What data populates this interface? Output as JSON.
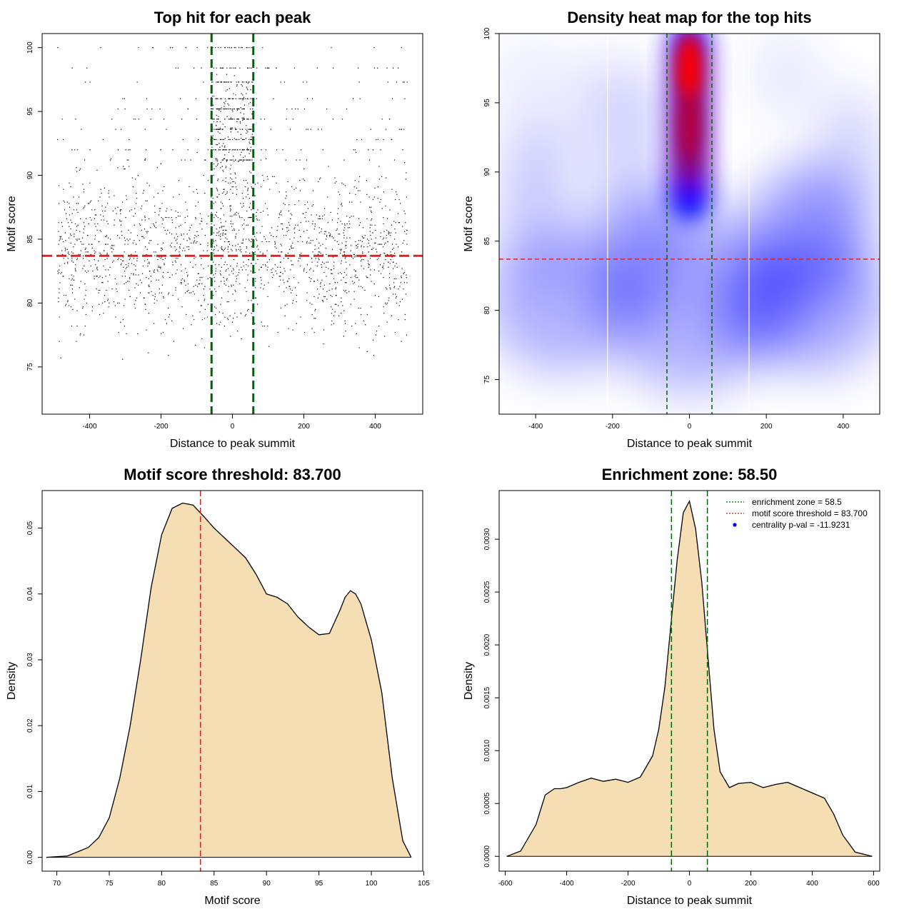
{
  "chart_data": [
    {
      "id": "scatter",
      "type": "scatter",
      "title": "Top hit for each peak",
      "xlabel": "Distance to peak summit",
      "ylabel": "Motif score",
      "xlim": [
        -533,
        533
      ],
      "ylim": [
        71.3,
        101.1
      ],
      "xticks": [
        -400,
        -200,
        0,
        200,
        400
      ],
      "yticks": [
        75,
        80,
        85,
        90,
        95,
        100
      ],
      "threshold": 83.7,
      "zone": [
        -58.5,
        58.5
      ],
      "colors": {
        "points": "#000000",
        "threshold": "#dd2222",
        "zone": "#006400"
      },
      "points_summary": {
        "n": 2500,
        "x_range": [
          -500,
          500
        ],
        "score_range": [
          72.5,
          100
        ],
        "note": "dense column near x=0 at high scores"
      }
    },
    {
      "id": "heatmap",
      "type": "heatmap",
      "title": "Density heat map for the top hits",
      "xlabel": "Distance to peak summit",
      "ylabel": "Motif score",
      "xlim": [
        -495,
        495
      ],
      "ylim": [
        72.5,
        100
      ],
      "xticks": [
        -400,
        -200,
        0,
        200,
        400
      ],
      "yticks": [
        75,
        80,
        85,
        90,
        95,
        100
      ],
      "threshold": 83.7,
      "zone": [
        -58.5,
        58.5
      ],
      "colors": {
        "low": "#ffffff",
        "mid": "#0000ff",
        "high": "#ff0000",
        "threshold": "#dd2222",
        "zone": "#006400"
      }
    },
    {
      "id": "score_density",
      "type": "area",
      "title": "Motif score threshold: 83.700",
      "xlabel": "Motif score",
      "ylabel": "Density",
      "xlim": [
        68.6,
        104.9
      ],
      "ylim": [
        -0.0021,
        0.0557
      ],
      "xticks": [
        70,
        75,
        80,
        85,
        90,
        95,
        100,
        105
      ],
      "yticks": [
        0.0,
        0.01,
        0.02,
        0.03,
        0.04,
        0.05
      ],
      "ytick_labels": [
        "0.00",
        "0.01",
        "0.02",
        "0.03",
        "0.04",
        "0.05"
      ],
      "threshold": 83.7,
      "x": [
        69,
        71,
        73,
        74,
        75,
        76,
        77,
        78,
        79,
        80,
        81,
        82,
        83,
        84,
        85,
        86,
        87,
        88,
        89,
        90,
        91,
        92,
        93,
        94,
        95,
        96,
        97,
        97.5,
        98,
        98.5,
        99,
        100,
        101,
        102,
        103,
        103.8
      ],
      "y": [
        0.0,
        0.0002,
        0.0015,
        0.003,
        0.006,
        0.012,
        0.02,
        0.03,
        0.041,
        0.049,
        0.053,
        0.0538,
        0.0535,
        0.0518,
        0.05,
        0.0485,
        0.047,
        0.0455,
        0.043,
        0.04,
        0.0395,
        0.0385,
        0.0365,
        0.035,
        0.0338,
        0.034,
        0.0375,
        0.0395,
        0.0405,
        0.04,
        0.0385,
        0.033,
        0.025,
        0.012,
        0.0025,
        0.0
      ],
      "colors": {
        "fill": "#f5deb3",
        "line": "#000000",
        "threshold": "#cc2222"
      }
    },
    {
      "id": "distance_density",
      "type": "area",
      "title": "Enrichment zone: 58.50",
      "xlabel": "Distance to peak summit",
      "ylabel": "Density",
      "xlim": [
        -620,
        620
      ],
      "ylim": [
        -0.00014,
        0.00346
      ],
      "xticks": [
        -600,
        -400,
        -200,
        0,
        200,
        400,
        600
      ],
      "yticks": [
        0.0,
        0.0005,
        0.001,
        0.0015,
        0.002,
        0.0025,
        0.003
      ],
      "ytick_labels": [
        "0.0000",
        "0.0005",
        "0.0010",
        "0.0015",
        "0.0020",
        "0.0025",
        "0.0030"
      ],
      "zone": [
        -58.5,
        58.5
      ],
      "x": [
        -595,
        -550,
        -500,
        -470,
        -440,
        -420,
        -400,
        -360,
        -320,
        -280,
        -240,
        -200,
        -160,
        -120,
        -100,
        -80,
        -60,
        -40,
        -20,
        0,
        20,
        40,
        60,
        80,
        100,
        130,
        160,
        200,
        240,
        280,
        320,
        360,
        400,
        440,
        470,
        500,
        540,
        595
      ],
      "y": [
        0.0,
        5e-05,
        0.0003,
        0.00058,
        0.00064,
        0.00064,
        0.00065,
        0.0007,
        0.00074,
        0.00071,
        0.00073,
        0.0007,
        0.00075,
        0.00095,
        0.0012,
        0.0016,
        0.0022,
        0.0028,
        0.00325,
        0.00336,
        0.0031,
        0.0026,
        0.0019,
        0.0012,
        0.0008,
        0.00065,
        0.00069,
        0.0007,
        0.00065,
        0.00068,
        0.0007,
        0.00065,
        0.0006,
        0.00055,
        0.0004,
        0.0002,
        4e-05,
        0.0
      ],
      "colors": {
        "fill": "#f5deb3",
        "line": "#000000",
        "zone": "#006400"
      },
      "legend": [
        {
          "label": "enrichment zone = 58.5",
          "color": "#006400",
          "kind": "dotted-line"
        },
        {
          "label": "motif score threshold = 83.700",
          "color": "#dd2222",
          "kind": "dotted-line"
        },
        {
          "label": "centrality p-val = -11.9231",
          "color": "#0000ff",
          "kind": "point"
        }
      ],
      "legend_position": "top-right"
    }
  ]
}
